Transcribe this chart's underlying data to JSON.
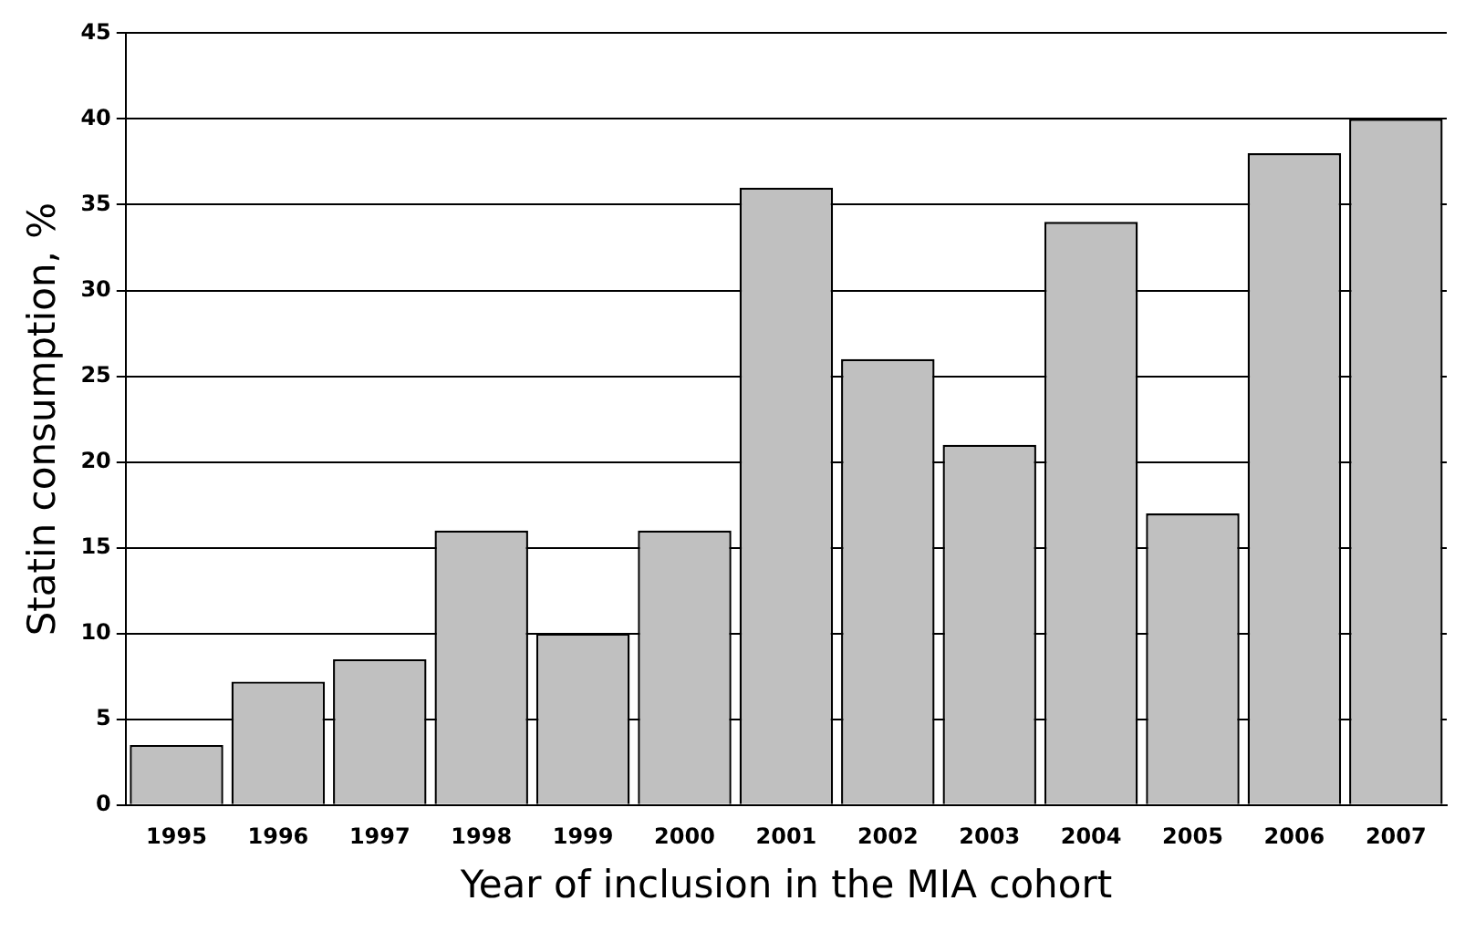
{
  "chart_data": {
    "type": "bar",
    "xlabel": "Year of inclusion in the MIA cohort",
    "ylabel": "Statin consumption, %",
    "categories": [
      "1995",
      "1996",
      "1997",
      "1998",
      "1999",
      "2000",
      "2001",
      "2002",
      "2003",
      "2004",
      "2005",
      "2006",
      "2007"
    ],
    "values": [
      3.5,
      7.2,
      8.5,
      16,
      10,
      16,
      36,
      26,
      21,
      34,
      17,
      38,
      40
    ],
    "color": "#c0c0c0",
    "ylim": [
      0,
      45
    ],
    "yticks": [
      0,
      5,
      10,
      15,
      20,
      25,
      30,
      35,
      40,
      45
    ],
    "grid": "y"
  }
}
